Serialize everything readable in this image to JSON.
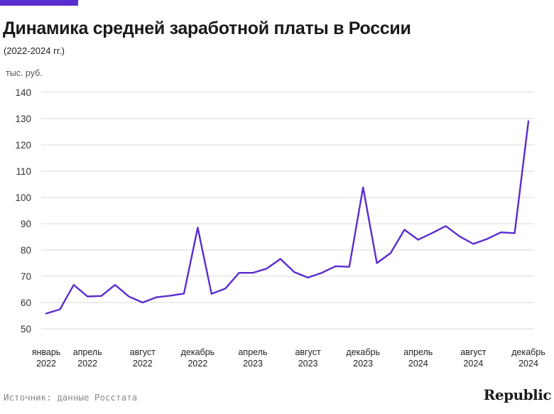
{
  "colors": {
    "accent": "#5b2ccf",
    "line": "#5b2ccf",
    "grid": "#d9d9d9"
  },
  "header": {
    "title": "Динамика средней заработной платы в России",
    "subtitle": "(2022-2024 гг.)"
  },
  "footer": {
    "source": "Источник: данные Росстата",
    "brand": "Republic"
  },
  "chart_data": {
    "type": "line",
    "title": "Динамика средней заработной платы в России",
    "subtitle": "(2022-2024 гг.)",
    "ylabel": "тыс. руб.",
    "xlabel": "",
    "ylim": [
      50,
      140
    ],
    "yticks": [
      50,
      60,
      70,
      80,
      90,
      100,
      110,
      120,
      130,
      140
    ],
    "grid": true,
    "x": [
      "2022-01",
      "2022-02",
      "2022-03",
      "2022-04",
      "2022-05",
      "2022-06",
      "2022-07",
      "2022-08",
      "2022-09",
      "2022-10",
      "2022-11",
      "2022-12",
      "2023-01",
      "2023-02",
      "2023-03",
      "2023-04",
      "2023-05",
      "2023-06",
      "2023-07",
      "2023-08",
      "2023-09",
      "2023-10",
      "2023-11",
      "2023-12",
      "2024-01",
      "2024-02",
      "2024-03",
      "2024-04",
      "2024-05",
      "2024-06",
      "2024-07",
      "2024-08",
      "2024-09",
      "2024-10",
      "2024-11",
      "2024-12"
    ],
    "xtick_labels": [
      {
        "month": "январь",
        "year": "2022",
        "index": 0
      },
      {
        "month": "апрель",
        "year": "2022",
        "index": 3
      },
      {
        "month": "август",
        "year": "2022",
        "index": 7
      },
      {
        "month": "декабрь",
        "year": "2022",
        "index": 11
      },
      {
        "month": "апрель",
        "year": "2023",
        "index": 15
      },
      {
        "month": "август",
        "year": "2023",
        "index": 19
      },
      {
        "month": "декабрь",
        "year": "2023",
        "index": 23
      },
      {
        "month": "апрель",
        "year": "2024",
        "index": 27
      },
      {
        "month": "август",
        "year": "2024",
        "index": 31
      },
      {
        "month": "декабрь",
        "year": "2024",
        "index": 35
      }
    ],
    "series": [
      {
        "values": [
          55.8,
          57.4,
          66.7,
          62.3,
          62.5,
          66.7,
          62.3,
          60.0,
          62.0,
          62.6,
          63.4,
          88.5,
          63.3,
          65.3,
          71.3,
          71.3,
          72.9,
          76.6,
          71.6,
          69.5,
          71.3,
          73.8,
          73.6,
          103.8,
          75.0,
          78.8,
          87.7,
          83.9,
          86.4,
          89.1,
          85.2,
          82.3,
          84.2,
          86.7,
          86.4,
          129.0
        ]
      }
    ]
  }
}
